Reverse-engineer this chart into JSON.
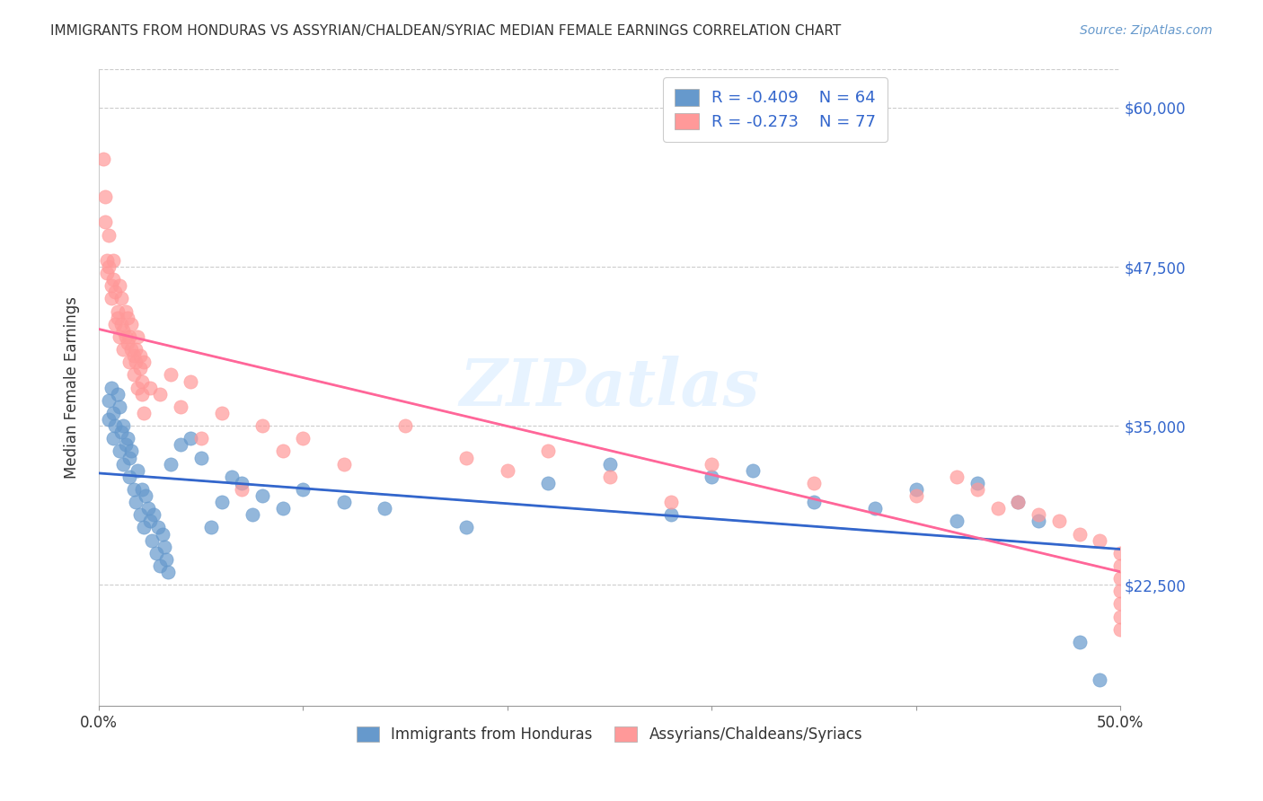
{
  "title": "IMMIGRANTS FROM HONDURAS VS ASSYRIAN/CHALDEAN/SYRIAC MEDIAN FEMALE EARNINGS CORRELATION CHART",
  "source": "Source: ZipAtlas.com",
  "xlabel": "",
  "ylabel": "Median Female Earnings",
  "xlim": [
    0.0,
    0.5
  ],
  "ylim": [
    13000,
    63000
  ],
  "yticks": [
    22500,
    35000,
    47500,
    60000
  ],
  "ytick_labels": [
    "$22,500",
    "$35,000",
    "$47,500",
    "$60,000"
  ],
  "xticks": [
    0.0,
    0.1,
    0.2,
    0.3,
    0.4,
    0.5
  ],
  "xtick_labels": [
    "0.0%",
    "",
    "",
    "",
    "",
    "50.0%"
  ],
  "watermark": "ZIPatlas",
  "legend_r1": "R = -0.409",
  "legend_n1": "N = 64",
  "legend_r2": "R = -0.273",
  "legend_n2": "N = 77",
  "blue_color": "#6699CC",
  "pink_color": "#FF9999",
  "blue_line_color": "#3366CC",
  "pink_line_color": "#FF6699",
  "blue_scatter_x": [
    0.005,
    0.005,
    0.006,
    0.007,
    0.007,
    0.008,
    0.009,
    0.01,
    0.01,
    0.011,
    0.012,
    0.012,
    0.013,
    0.014,
    0.015,
    0.015,
    0.016,
    0.017,
    0.018,
    0.019,
    0.02,
    0.021,
    0.022,
    0.023,
    0.024,
    0.025,
    0.026,
    0.027,
    0.028,
    0.029,
    0.03,
    0.031,
    0.032,
    0.033,
    0.034,
    0.035,
    0.04,
    0.045,
    0.05,
    0.055,
    0.06,
    0.065,
    0.07,
    0.075,
    0.08,
    0.09,
    0.1,
    0.12,
    0.14,
    0.18,
    0.22,
    0.25,
    0.28,
    0.3,
    0.32,
    0.35,
    0.38,
    0.4,
    0.42,
    0.43,
    0.45,
    0.46,
    0.48,
    0.49
  ],
  "blue_scatter_y": [
    37000,
    35500,
    38000,
    36000,
    34000,
    35000,
    37500,
    36500,
    33000,
    34500,
    32000,
    35000,
    33500,
    34000,
    31000,
    32500,
    33000,
    30000,
    29000,
    31500,
    28000,
    30000,
    27000,
    29500,
    28500,
    27500,
    26000,
    28000,
    25000,
    27000,
    24000,
    26500,
    25500,
    24500,
    23500,
    32000,
    33500,
    34000,
    32500,
    27000,
    29000,
    31000,
    30500,
    28000,
    29500,
    28500,
    30000,
    29000,
    28500,
    27000,
    30500,
    32000,
    28000,
    31000,
    31500,
    29000,
    28500,
    30000,
    27500,
    30500,
    29000,
    27500,
    18000,
    15000
  ],
  "pink_scatter_x": [
    0.002,
    0.003,
    0.003,
    0.004,
    0.004,
    0.005,
    0.005,
    0.006,
    0.006,
    0.007,
    0.007,
    0.008,
    0.008,
    0.009,
    0.009,
    0.01,
    0.01,
    0.011,
    0.011,
    0.012,
    0.012,
    0.013,
    0.013,
    0.014,
    0.014,
    0.015,
    0.015,
    0.016,
    0.016,
    0.017,
    0.017,
    0.018,
    0.018,
    0.019,
    0.019,
    0.02,
    0.02,
    0.021,
    0.021,
    0.022,
    0.022,
    0.025,
    0.03,
    0.035,
    0.04,
    0.045,
    0.05,
    0.06,
    0.07,
    0.08,
    0.09,
    0.1,
    0.12,
    0.15,
    0.18,
    0.2,
    0.22,
    0.25,
    0.28,
    0.3,
    0.35,
    0.4,
    0.42,
    0.43,
    0.44,
    0.45,
    0.46,
    0.47,
    0.48,
    0.49,
    0.5,
    0.5,
    0.5,
    0.5,
    0.5,
    0.5,
    0.5
  ],
  "pink_scatter_y": [
    56000,
    53000,
    51000,
    48000,
    47000,
    50000,
    47500,
    46000,
    45000,
    48000,
    46500,
    43000,
    45500,
    44000,
    43500,
    46000,
    42000,
    45000,
    43000,
    42500,
    41000,
    44000,
    42000,
    43500,
    41500,
    40000,
    42000,
    41000,
    43000,
    40500,
    39000,
    41000,
    40000,
    42000,
    38000,
    40500,
    39500,
    38500,
    37500,
    40000,
    36000,
    38000,
    37500,
    39000,
    36500,
    38500,
    34000,
    36000,
    30000,
    35000,
    33000,
    34000,
    32000,
    35000,
    32500,
    31500,
    33000,
    31000,
    29000,
    32000,
    30500,
    29500,
    31000,
    30000,
    28500,
    29000,
    28000,
    27500,
    26500,
    26000,
    25000,
    24000,
    23000,
    22000,
    21000,
    20000,
    19000
  ]
}
